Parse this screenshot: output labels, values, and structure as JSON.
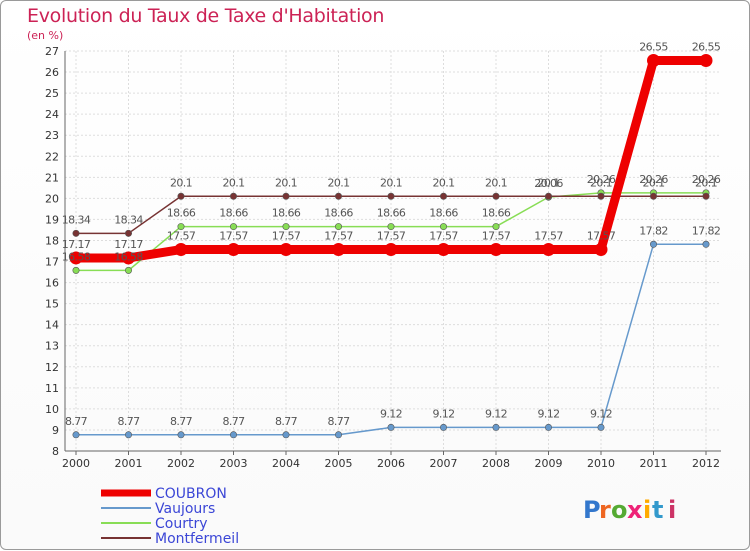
{
  "chart_data": {
    "type": "line",
    "title": "Evolution du Taux de Taxe d'Habitation",
    "unit_label": "(en %)",
    "x": [
      "2000",
      "2001",
      "2002",
      "2003",
      "2004",
      "2005",
      "2006",
      "2007",
      "2008",
      "2009",
      "2010",
      "2011",
      "2012"
    ],
    "ylim": [
      8,
      27
    ],
    "yticks": [
      "8",
      "9",
      "10",
      "11",
      "12",
      "13",
      "14",
      "15",
      "16",
      "17",
      "18",
      "19",
      "20",
      "21",
      "22",
      "23",
      "24",
      "25",
      "26",
      "27"
    ],
    "grid": true,
    "legend_position": "bottom-left",
    "series": [
      {
        "name": "COUBRON",
        "color": "#ee0000",
        "values": [
          17.17,
          17.17,
          17.57,
          17.57,
          17.57,
          17.57,
          17.57,
          17.57,
          17.57,
          17.57,
          17.57,
          26.55,
          26.55
        ],
        "labels": [
          "17.17",
          "17.17",
          "17.57",
          "17.57",
          "17.57",
          "17.57",
          "17.57",
          "17.57",
          "17.57",
          "17.57",
          "17.57",
          "26.55",
          "26.55"
        ]
      },
      {
        "name": "Vaujours",
        "color": "#6699cc",
        "values": [
          8.77,
          8.77,
          8.77,
          8.77,
          8.77,
          8.77,
          9.12,
          9.12,
          9.12,
          9.12,
          9.12,
          17.82,
          17.82
        ],
        "labels": [
          "8.77",
          "8.77",
          "8.77",
          "8.77",
          "8.77",
          "8.77",
          "9.12",
          "9.12",
          "9.12",
          "9.12",
          "9.12",
          "17.82",
          "17.82"
        ]
      },
      {
        "name": "Courtry",
        "color": "#88dd55",
        "values": [
          16.58,
          16.58,
          18.66,
          18.66,
          18.66,
          18.66,
          18.66,
          18.66,
          18.66,
          20.06,
          20.26,
          20.26,
          20.26
        ],
        "labels": [
          "16.58",
          "16.58",
          "18.66",
          "18.66",
          "18.66",
          "18.66",
          "18.66",
          "18.66",
          "18.66",
          "20.06",
          "20.26",
          "20.26",
          "20.26"
        ]
      },
      {
        "name": "Montfermeil",
        "color": "#773333",
        "values": [
          18.34,
          18.34,
          20.1,
          20.1,
          20.1,
          20.1,
          20.1,
          20.1,
          20.1,
          20.1,
          20.1,
          20.1,
          20.1
        ],
        "labels": [
          "18.34",
          "18.34",
          "20.1",
          "20.1",
          "20.1",
          "20.1",
          "20.1",
          "20.1",
          "20.1",
          "20.1",
          "20.1",
          "20.1",
          "20.1"
        ]
      }
    ]
  },
  "logo": {
    "text": "Proxiti"
  }
}
